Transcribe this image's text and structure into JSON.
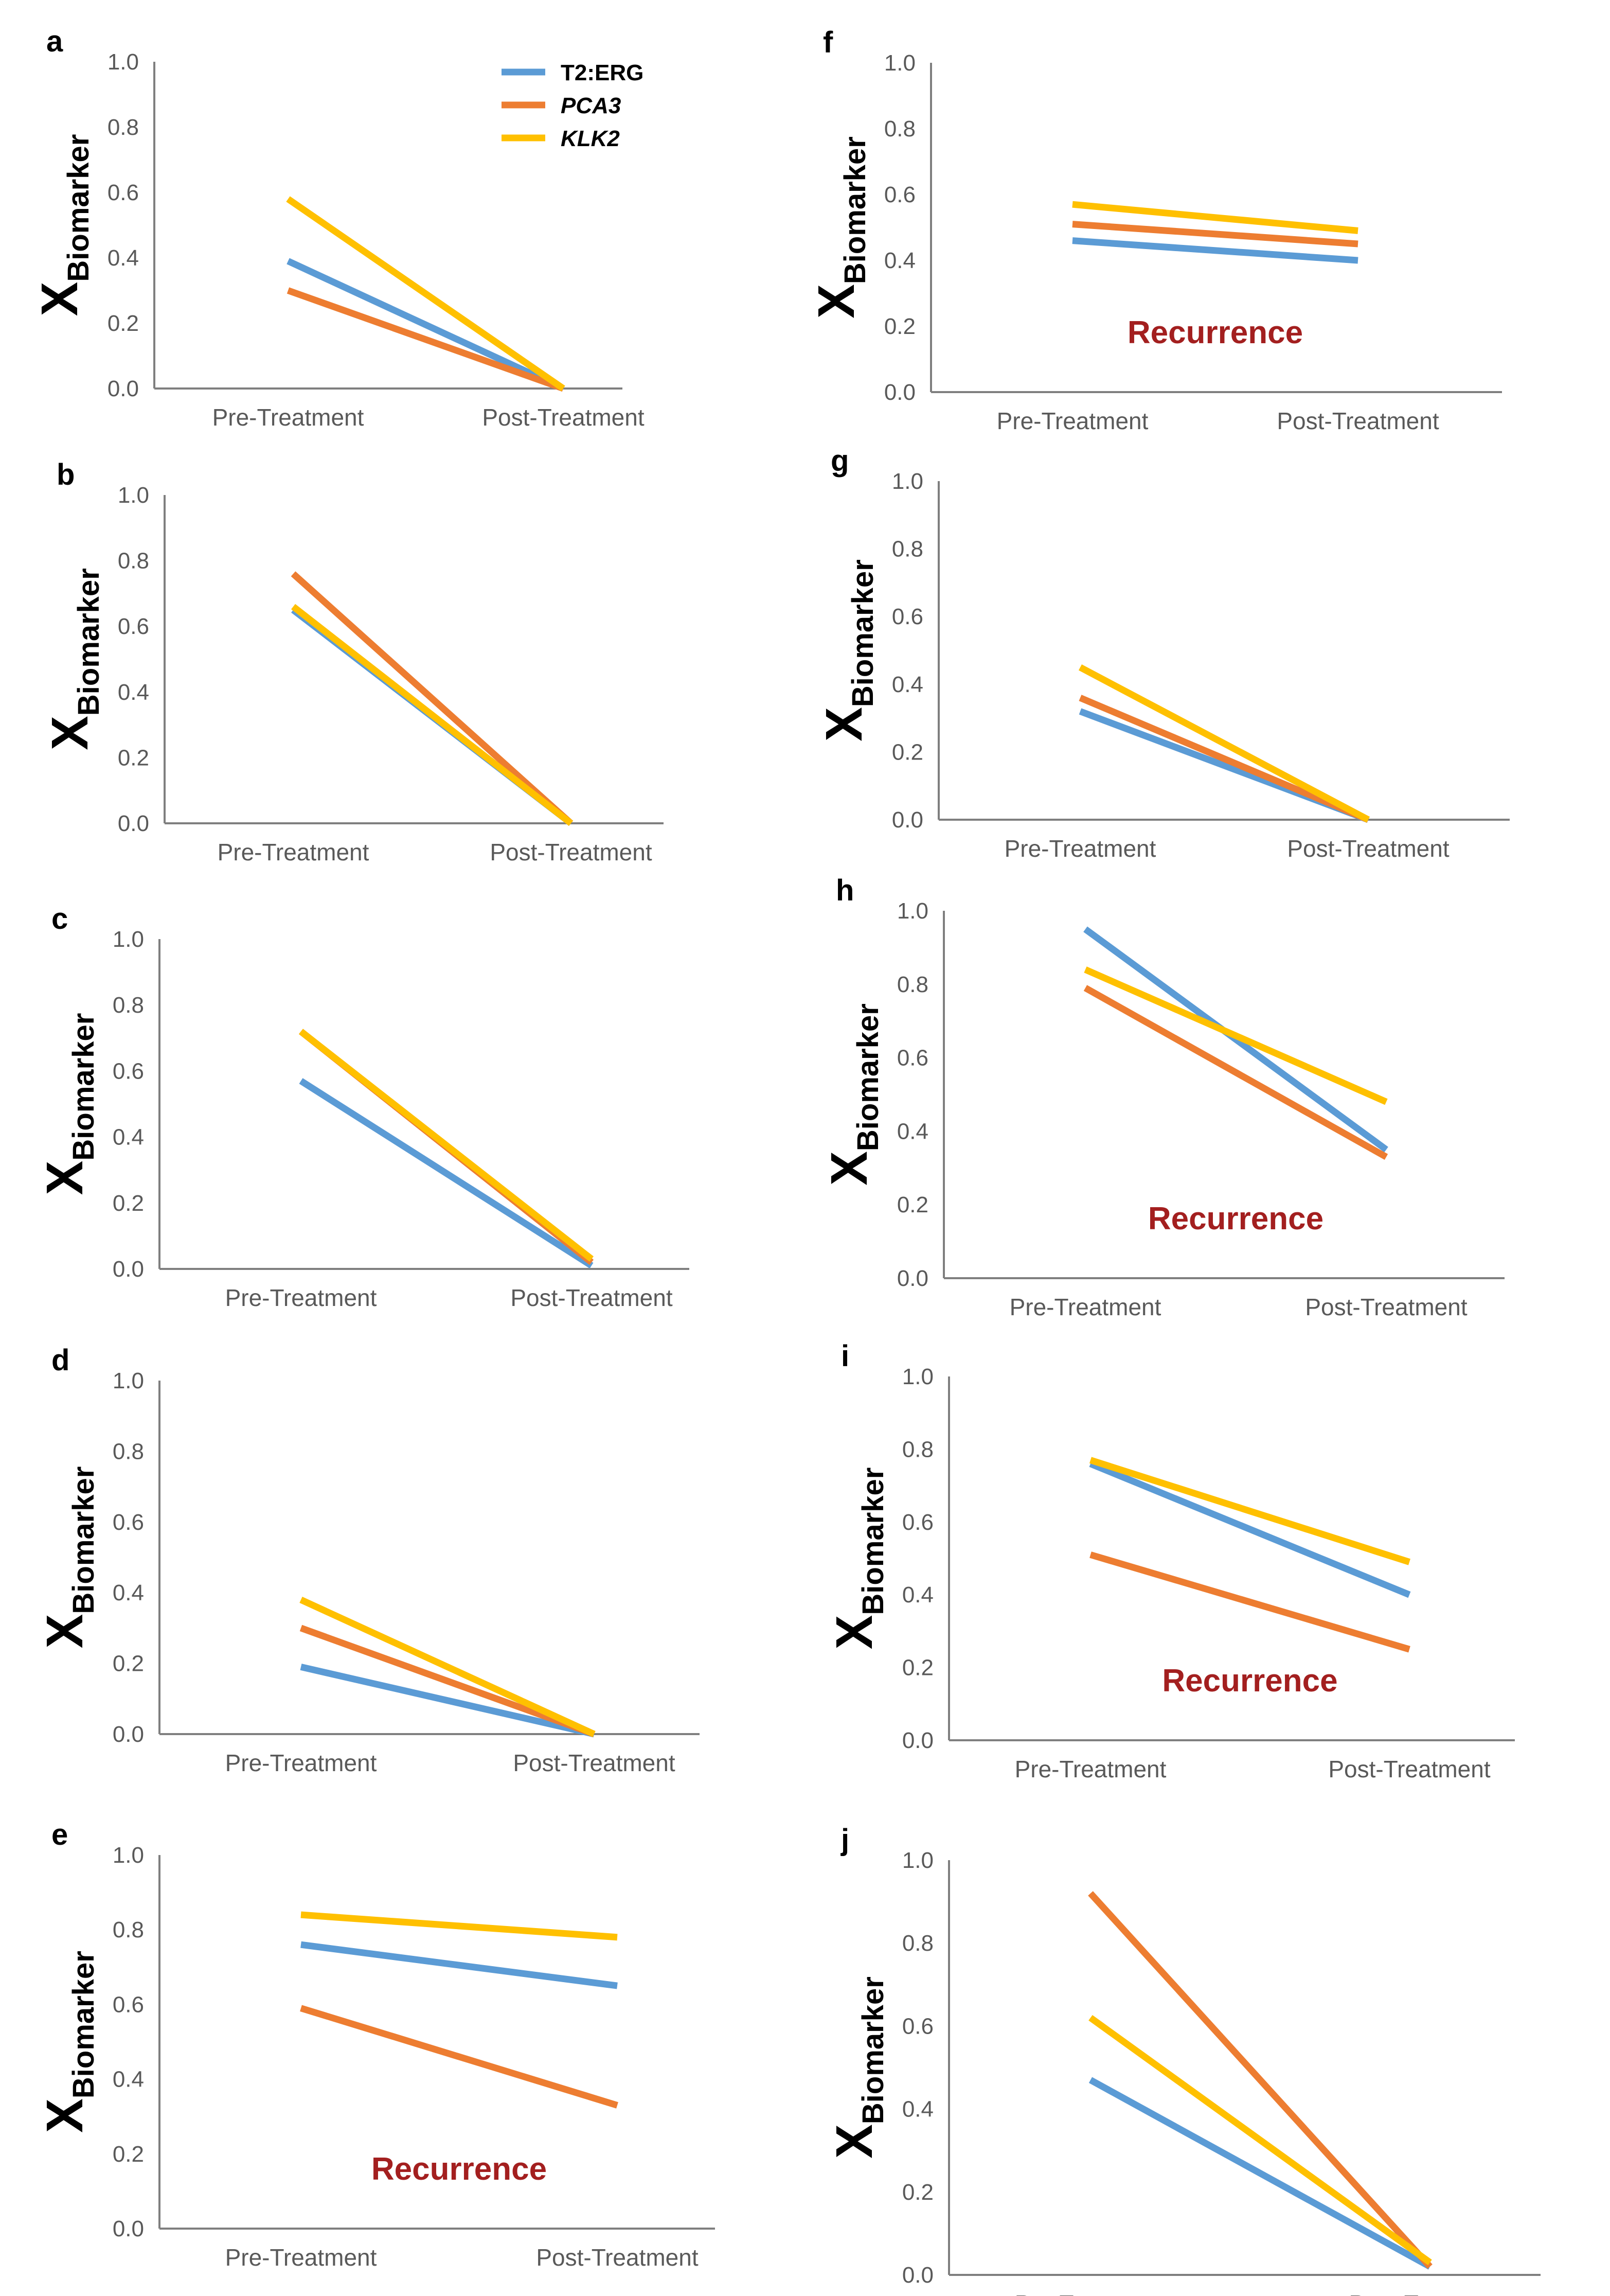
{
  "colors": {
    "T2:ERG": "#5b9bd5",
    "PCA3": "#ed7d31",
    "KLK2": "#ffc000",
    "axis": "#7f7f7f",
    "annotation": "#a31f1f"
  },
  "legend": [
    {
      "name": "T2:ERG",
      "italic": false
    },
    {
      "name": "PCA3",
      "italic": true
    },
    {
      "name": "KLK2",
      "italic": true
    }
  ],
  "chart_data": [
    {
      "panel": "a",
      "type": "line",
      "ylabel_main": "X",
      "ylabel_sub": "Biomarker",
      "ylim": [
        0,
        1
      ],
      "yticks": [
        "0.0",
        "0.2",
        "0.4",
        "0.6",
        "0.8",
        "1.0"
      ],
      "categories": [
        "Pre-Treatment",
        "Post-Treatment"
      ],
      "annotation": "",
      "series": [
        {
          "name": "T2:ERG",
          "values": [
            0.39,
            0.0
          ]
        },
        {
          "name": "PCA3",
          "values": [
            0.3,
            0.0
          ]
        },
        {
          "name": "KLK2",
          "values": [
            0.58,
            0.0
          ]
        }
      ]
    },
    {
      "panel": "b",
      "type": "line",
      "ylabel_main": "X",
      "ylabel_sub": "Biomarker",
      "ylim": [
        0,
        1
      ],
      "yticks": [
        "0.0",
        "0.2",
        "0.4",
        "0.6",
        "0.8",
        "1.0"
      ],
      "categories": [
        "Pre-Treatment",
        "Post-Treatment"
      ],
      "annotation": "",
      "series": [
        {
          "name": "T2:ERG",
          "values": [
            0.65,
            0.0
          ]
        },
        {
          "name": "PCA3",
          "values": [
            0.76,
            0.0
          ]
        },
        {
          "name": "KLK2",
          "values": [
            0.66,
            0.0
          ]
        }
      ]
    },
    {
      "panel": "c",
      "type": "line",
      "ylabel_main": "X",
      "ylabel_sub": "Biomarker",
      "ylim": [
        0,
        1
      ],
      "yticks": [
        "0.0",
        "0.2",
        "0.4",
        "0.6",
        "0.8",
        "1.0"
      ],
      "categories": [
        "Pre-Treatment",
        "Post-Treatment"
      ],
      "annotation": "",
      "series": [
        {
          "name": "T2:ERG",
          "values": [
            0.57,
            0.01
          ]
        },
        {
          "name": "PCA3",
          "values": [
            0.72,
            0.02
          ]
        },
        {
          "name": "KLK2",
          "values": [
            0.72,
            0.03
          ]
        }
      ]
    },
    {
      "panel": "d",
      "type": "line",
      "ylabel_main": "X",
      "ylabel_sub": "Biomarker",
      "ylim": [
        0,
        1
      ],
      "yticks": [
        "0.0",
        "0.2",
        "0.4",
        "0.6",
        "0.8",
        "1.0"
      ],
      "categories": [
        "Pre-Treatment",
        "Post-Treatment"
      ],
      "annotation": "",
      "series": [
        {
          "name": "T2:ERG",
          "values": [
            0.19,
            0.0
          ]
        },
        {
          "name": "PCA3",
          "values": [
            0.3,
            0.0
          ]
        },
        {
          "name": "KLK2",
          "values": [
            0.38,
            0.0
          ]
        }
      ]
    },
    {
      "panel": "e",
      "type": "line",
      "ylabel_main": "X",
      "ylabel_sub": "Biomarker",
      "ylim": [
        0,
        1
      ],
      "yticks": [
        "0.0",
        "0.2",
        "0.4",
        "0.6",
        "0.8",
        "1.0"
      ],
      "categories": [
        "Pre-Treatment",
        "Post-Treatment"
      ],
      "annotation": "Recurrence",
      "series": [
        {
          "name": "T2:ERG",
          "values": [
            0.76,
            0.65
          ]
        },
        {
          "name": "PCA3",
          "values": [
            0.59,
            0.33
          ]
        },
        {
          "name": "KLK2",
          "values": [
            0.84,
            0.78
          ]
        }
      ]
    },
    {
      "panel": "f",
      "type": "line",
      "ylabel_main": "X",
      "ylabel_sub": "Biomarker",
      "ylim": [
        0,
        1
      ],
      "yticks": [
        "0.0",
        "0.2",
        "0.4",
        "0.6",
        "0.8",
        "1.0"
      ],
      "categories": [
        "Pre-Treatment",
        "Post-Treatment"
      ],
      "annotation": "Recurrence",
      "series": [
        {
          "name": "T2:ERG",
          "values": [
            0.46,
            0.4
          ]
        },
        {
          "name": "PCA3",
          "values": [
            0.51,
            0.45
          ]
        },
        {
          "name": "KLK2",
          "values": [
            0.57,
            0.49
          ]
        }
      ]
    },
    {
      "panel": "g",
      "type": "line",
      "ylabel_main": "X",
      "ylabel_sub": "Biomarker",
      "ylim": [
        0,
        1
      ],
      "yticks": [
        "0.0",
        "0.2",
        "0.4",
        "0.6",
        "0.8",
        "1.0"
      ],
      "categories": [
        "Pre-Treatment",
        "Post-Treatment"
      ],
      "annotation": "",
      "series": [
        {
          "name": "T2:ERG",
          "values": [
            0.32,
            0.0
          ]
        },
        {
          "name": "PCA3",
          "values": [
            0.36,
            0.0
          ]
        },
        {
          "name": "KLK2",
          "values": [
            0.45,
            0.0
          ]
        }
      ]
    },
    {
      "panel": "h",
      "type": "line",
      "ylabel_main": "X",
      "ylabel_sub": "Biomarker",
      "ylim": [
        0,
        1
      ],
      "yticks": [
        "0.0",
        "0.2",
        "0.4",
        "0.6",
        "0.8",
        "1.0"
      ],
      "categories": [
        "Pre-Treatment",
        "Post-Treatment"
      ],
      "annotation": "Recurrence",
      "series": [
        {
          "name": "T2:ERG",
          "values": [
            0.95,
            0.35
          ]
        },
        {
          "name": "PCA3",
          "values": [
            0.79,
            0.33
          ]
        },
        {
          "name": "KLK2",
          "values": [
            0.84,
            0.48
          ]
        }
      ]
    },
    {
      "panel": "i",
      "type": "line",
      "ylabel_main": "X",
      "ylabel_sub": "Biomarker",
      "ylim": [
        0,
        1
      ],
      "yticks": [
        "0.0",
        "0.2",
        "0.4",
        "0.6",
        "0.8",
        "1.0"
      ],
      "categories": [
        "Pre-Treatment",
        "Post-Treatment"
      ],
      "annotation": "Recurrence",
      "series": [
        {
          "name": "T2:ERG",
          "values": [
            0.76,
            0.4
          ]
        },
        {
          "name": "PCA3",
          "values": [
            0.51,
            0.25
          ]
        },
        {
          "name": "KLK2",
          "values": [
            0.77,
            0.49
          ]
        }
      ]
    },
    {
      "panel": "j",
      "type": "line",
      "ylabel_main": "X",
      "ylabel_sub": "Biomarker",
      "ylim": [
        0,
        1
      ],
      "yticks": [
        "0.0",
        "0.2",
        "0.4",
        "0.6",
        "0.8",
        "1.0"
      ],
      "categories": [
        "Pre-Treatment",
        "Post-Treatment"
      ],
      "annotation": "",
      "series": [
        {
          "name": "T2:ERG",
          "values": [
            0.47,
            0.02
          ]
        },
        {
          "name": "PCA3",
          "values": [
            0.92,
            0.02
          ]
        },
        {
          "name": "KLK2",
          "values": [
            0.62,
            0.03
          ]
        }
      ]
    }
  ]
}
